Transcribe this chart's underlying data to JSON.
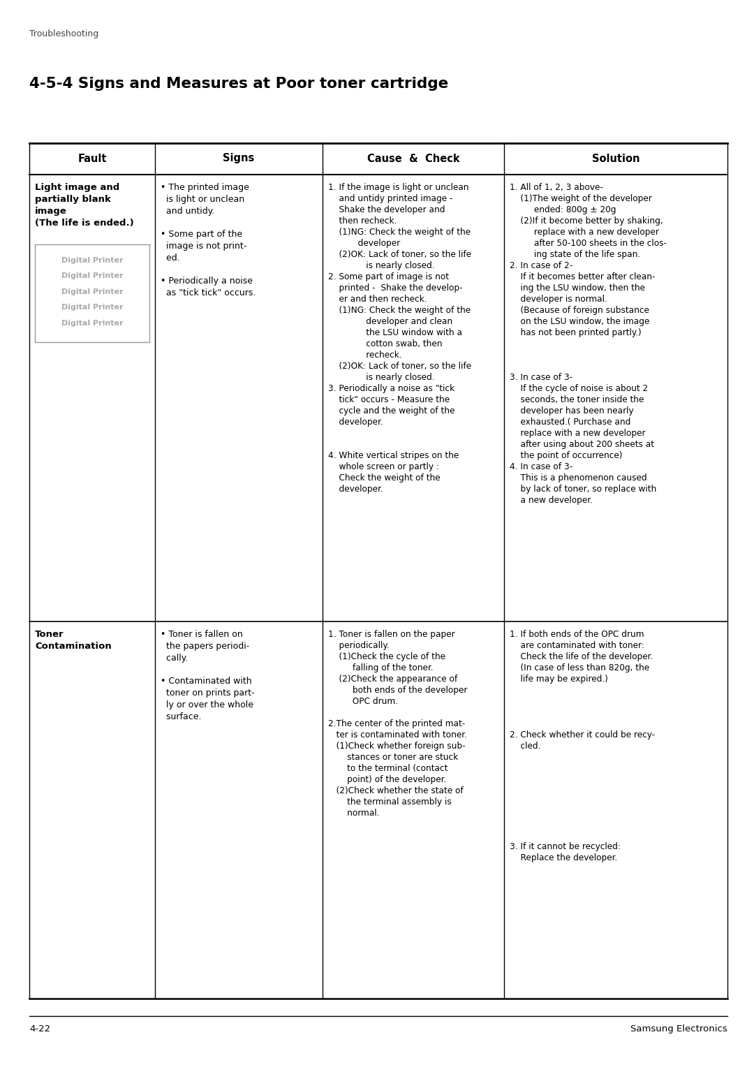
{
  "page_header": "Troubleshooting",
  "page_title": "4-5-4 Signs and Measures at Poor toner cartridge",
  "footer_left": "4-22",
  "footer_right": "Samsung Electronics",
  "bg_color": "#ffffff",
  "col_headers": [
    "Fault",
    "Signs",
    "Cause  &  Check",
    "Solution"
  ],
  "image_lines": [
    "Digital Printer",
    "Digital Printer",
    "Digital Printer",
    "Digital Printer",
    "Digital Printer"
  ],
  "row1": {
    "fault": "Light image and\npartially blank\nimage\n(The life is ended.)",
    "signs": "• The printed image\n  is light or unclean\n  and untidy.\n\n• Some part of the\n  image is not print-\n  ed.\n\n• Periodically a noise\n  as \"tick tick\" occurs.",
    "cause": "1. If the image is light or unclean\n    and untidy printed image -\n    Shake the developer and\n    then recheck.\n    (1)NG: Check the weight of the\n           developer\n    (2)OK: Lack of toner, so the life\n              is nearly closed.\n2. Some part of image is not\n    printed -  Shake the develop-\n    er and then recheck.\n    (1)NG: Check the weight of the\n              developer and clean\n              the LSU window with a\n              cotton swab, then\n              recheck.\n    (2)OK: Lack of toner, so the life\n              is nearly closed.\n3. Periodically a noise as \"tick\n    tick\" occurs - Measure the\n    cycle and the weight of the\n    developer.\n\n\n4. White vertical stripes on the\n    whole screen or partly :\n    Check the weight of the\n    developer.",
    "solution": "1. All of 1, 2, 3 above-\n    (1)The weight of the developer\n         ended: 800g ± 20g\n    (2)If it become better by shaking,\n         replace with a new developer\n         after 50-100 sheets in the clos-\n         ing state of the life span.\n2. In case of 2-\n    If it becomes better after clean-\n    ing the LSU window, then the\n    developer is normal.\n    (Because of foreign substance\n    on the LSU window, the image\n    has not been printed partly.)\n\n\n\n3. In case of 3-\n    If the cycle of noise is about 2\n    seconds, the toner inside the\n    developer has been nearly\n    exhausted.( Purchase and\n    replace with a new developer\n    after using about 200 sheets at\n    the point of occurrence)\n4. In case of 3-\n    This is a phenomenon caused\n    by lack of toner, so replace with\n    a new developer."
  },
  "row2": {
    "fault": "Toner\nContamination",
    "signs": "• Toner is fallen on\n  the papers periodi-\n  cally.\n\n• Contaminated with\n  toner on prints part-\n  ly or over the whole\n  surface.",
    "cause": "1. Toner is fallen on the paper\n    periodically.\n    (1)Check the cycle of the\n         falling of the toner.\n    (2)Check the appearance of\n         both ends of the developer\n         OPC drum.\n\n2.The center of the printed mat-\n   ter is contaminated with toner.\n   (1)Check whether foreign sub-\n       stances or toner are stuck\n       to the terminal (contact\n       point) of the developer.\n   (2)Check whether the state of\n       the terminal assembly is\n       normal.",
    "solution": "1. If both ends of the OPC drum\n    are contaminated with toner:\n    Check the life of the developer.\n    (In case of less than 820g, the\n    life may be expired.)\n\n\n\n\n2. Check whether it could be recy-\n    cled.\n\n\n\n\n\n\n\n\n3. If it cannot be recycled:\n    Replace the developer."
  }
}
